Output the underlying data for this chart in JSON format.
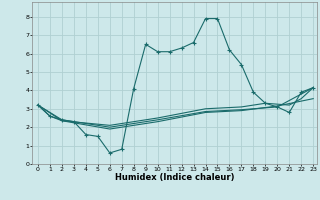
{
  "xlabel": "Humidex (Indice chaleur)",
  "bg_color": "#cde8ea",
  "grid_color": "#b0d0d2",
  "line_color": "#1a6b6b",
  "xlim": [
    -0.5,
    23.3
  ],
  "ylim": [
    0,
    8.8
  ],
  "xticks": [
    0,
    1,
    2,
    3,
    4,
    5,
    6,
    7,
    8,
    9,
    10,
    11,
    12,
    13,
    14,
    15,
    16,
    17,
    18,
    19,
    20,
    21,
    22,
    23
  ],
  "yticks": [
    0,
    1,
    2,
    3,
    4,
    5,
    6,
    7,
    8
  ],
  "line1_x": [
    0,
    1,
    2,
    3,
    4,
    5,
    6,
    7,
    8,
    9,
    10,
    11,
    12,
    13,
    14,
    15,
    16,
    17,
    18,
    19,
    20,
    21,
    22,
    23
  ],
  "line1_y": [
    3.2,
    2.6,
    2.4,
    2.3,
    1.6,
    1.5,
    0.6,
    0.8,
    4.1,
    6.5,
    6.1,
    6.1,
    6.3,
    6.6,
    7.9,
    7.9,
    6.2,
    5.4,
    3.9,
    3.3,
    3.1,
    2.8,
    3.9,
    4.15
  ],
  "line2_x": [
    0,
    1,
    2,
    6,
    10,
    14,
    17,
    19,
    21,
    22,
    23
  ],
  "line2_y": [
    3.2,
    2.6,
    2.35,
    2.1,
    2.5,
    3.0,
    3.1,
    3.3,
    3.2,
    3.55,
    4.15
  ],
  "line3_x": [
    0,
    2,
    6,
    10,
    14,
    17,
    20,
    23
  ],
  "line3_y": [
    3.2,
    2.35,
    1.9,
    2.3,
    2.8,
    2.9,
    3.15,
    3.55
  ],
  "line4_x": [
    0,
    2,
    6,
    10,
    14,
    17,
    20,
    23
  ],
  "line4_y": [
    3.2,
    2.4,
    2.0,
    2.4,
    2.85,
    2.95,
    3.1,
    4.15
  ]
}
